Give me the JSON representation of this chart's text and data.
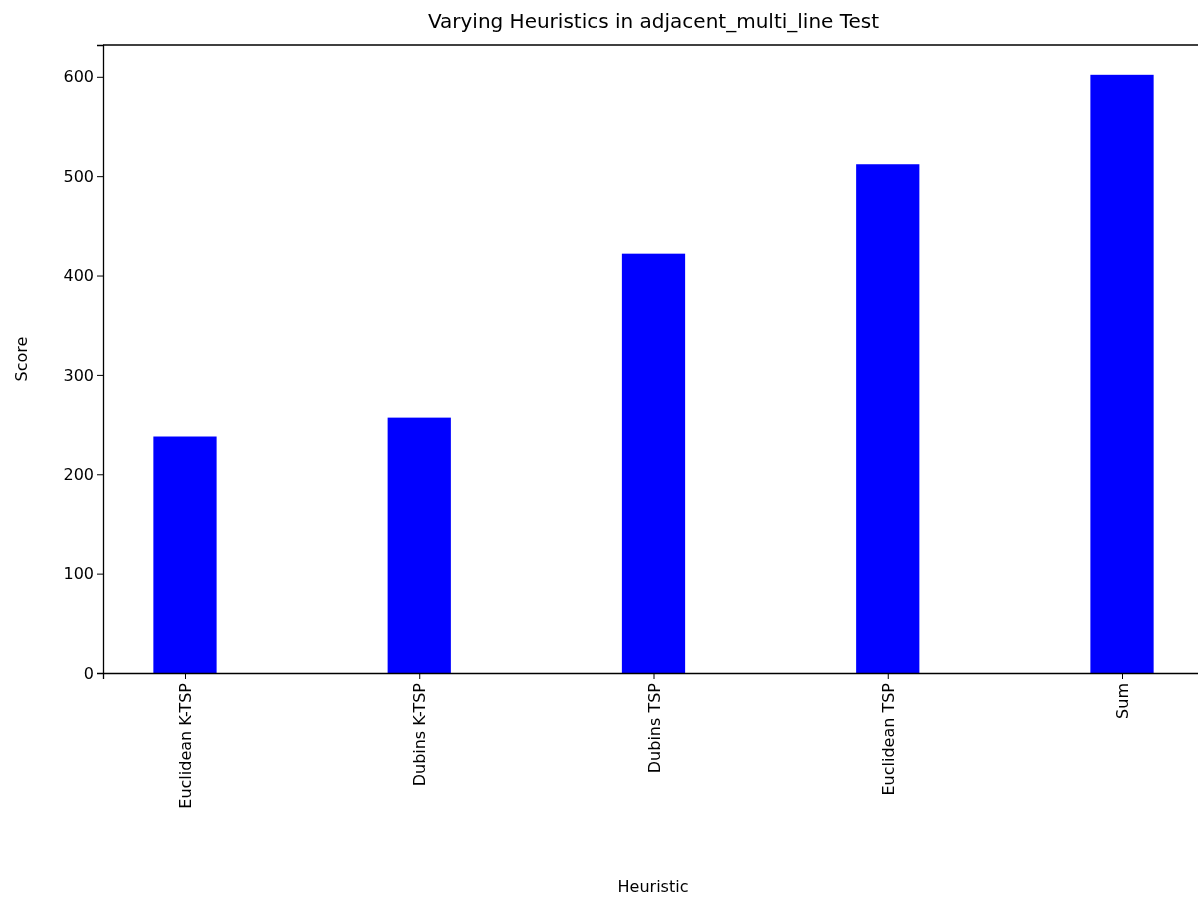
{
  "chart_data": {
    "type": "bar",
    "title": "Varying Heuristics in adjacent_multi_line Test",
    "xlabel": "Heuristic",
    "ylabel": "Score",
    "categories": [
      "Euclidean K-TSP",
      "Dubins K-TSP",
      "Dubins TSP",
      "Euclidean TSP",
      "Sum"
    ],
    "values": [
      238,
      257,
      422,
      512,
      602
    ],
    "color": "#0000ff",
    "ylim": [
      0,
      632
    ],
    "yticks": [
      0,
      100,
      200,
      300,
      400,
      500,
      600
    ],
    "grid": false
  }
}
